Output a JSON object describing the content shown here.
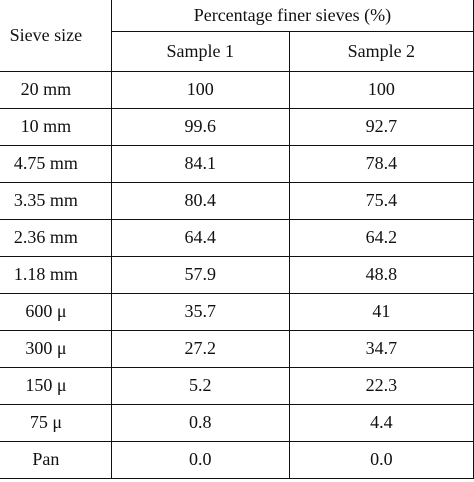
{
  "table": {
    "header": {
      "sieve_size": "Sieve size",
      "group": "Percentage finer sieves (%)",
      "sample1": "Sample 1",
      "sample2": "Sample 2"
    },
    "rows": [
      {
        "sieve": "20 mm",
        "s1": "100",
        "s2": "100"
      },
      {
        "sieve": "10 mm",
        "s1": "99.6",
        "s2": "92.7"
      },
      {
        "sieve": "4.75 mm",
        "s1": "84.1",
        "s2": "78.4"
      },
      {
        "sieve": "3.35 mm",
        "s1": "80.4",
        "s2": "75.4"
      },
      {
        "sieve": "2.36 mm",
        "s1": "64.4",
        "s2": "64.2"
      },
      {
        "sieve": "1.18 mm",
        "s1": "57.9",
        "s2": "48.8"
      },
      {
        "sieve": "600 μ",
        "s1": "35.7",
        "s2": "41"
      },
      {
        "sieve": "300 μ",
        "s1": "27.2",
        "s2": "34.7"
      },
      {
        "sieve": "150 μ",
        "s1": "5.2",
        "s2": "22.3"
      },
      {
        "sieve": "75 μ",
        "s1": "0.8",
        "s2": "4.4"
      },
      {
        "sieve": "Pan",
        "s1": "0.0",
        "s2": "0.0"
      }
    ]
  }
}
